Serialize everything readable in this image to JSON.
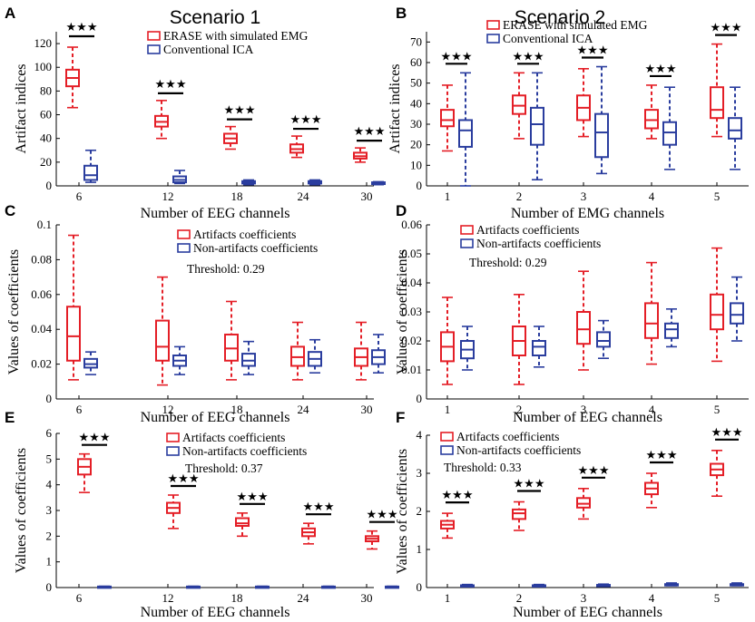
{
  "colors": {
    "artifact": "#e41e26",
    "nonartifact": "#2a3d9e"
  },
  "chart_data": [
    {
      "panel": "A",
      "type": "box",
      "title": "Scenario 1",
      "xlabel": "Number of EEG channels",
      "ylabel": "Artifact indices",
      "categories": [
        "6",
        "12",
        "18",
        "24",
        "30"
      ],
      "ylim": [
        0,
        130
      ],
      "yticks": [
        0,
        20,
        40,
        60,
        80,
        100,
        120
      ],
      "legend": [
        "ERASE with simulated EMG",
        "Conventional ICA"
      ],
      "legend_position": "top-right",
      "series": [
        {
          "name": "ERASE with simulated EMG",
          "boxes": [
            {
              "min": 66,
              "q1": 84,
              "median": 91,
              "q3": 98,
              "max": 117
            },
            {
              "min": 40,
              "q1": 50,
              "median": 54,
              "q3": 59,
              "max": 72
            },
            {
              "min": 31,
              "q1": 36,
              "median": 40,
              "q3": 44,
              "max": 50
            },
            {
              "min": 24,
              "q1": 28,
              "median": 31,
              "q3": 35,
              "max": 42
            },
            {
              "min": 20,
              "q1": 23,
              "median": 25,
              "q3": 28,
              "max": 32
            }
          ]
        },
        {
          "name": "Conventional ICA",
          "boxes": [
            {
              "min": 3,
              "q1": 5,
              "median": 9,
              "q3": 17,
              "max": 30
            },
            {
              "min": 2,
              "q1": 3,
              "median": 5,
              "q3": 8,
              "max": 13
            },
            {
              "min": 1,
              "q1": 2,
              "median": 3,
              "q3": 4,
              "max": 5
            },
            {
              "min": 1,
              "q1": 2,
              "median": 3,
              "q3": 4,
              "max": 5
            },
            {
              "min": 1,
              "q1": 1.5,
              "median": 2,
              "q3": 3,
              "max": 3.5
            }
          ]
        }
      ],
      "significance": [
        "★★★",
        "★★★",
        "★★★",
        "★★★",
        "★★★"
      ]
    },
    {
      "panel": "B",
      "type": "box",
      "title": "Scenario 2",
      "xlabel": "Number of EMG channels",
      "ylabel": "Artifact indices",
      "categories": [
        "1",
        "2",
        "3",
        "4",
        "5"
      ],
      "ylim": [
        0,
        75
      ],
      "yticks": [
        0,
        10,
        20,
        30,
        40,
        50,
        60,
        70
      ],
      "legend": [
        "ERASE with simulated EMG",
        "Conventional ICA"
      ],
      "legend_position": "top-right",
      "series": [
        {
          "name": "ERASE with simulated EMG",
          "boxes": [
            {
              "min": 17,
              "q1": 29,
              "median": 32,
              "q3": 37,
              "max": 49
            },
            {
              "min": 23,
              "q1": 35,
              "median": 39,
              "q3": 44,
              "max": 55
            },
            {
              "min": 24,
              "q1": 32,
              "median": 38,
              "q3": 44,
              "max": 57
            },
            {
              "min": 23,
              "q1": 28,
              "median": 32,
              "q3": 37,
              "max": 49
            },
            {
              "min": 24,
              "q1": 33,
              "median": 37,
              "q3": 48,
              "max": 69
            }
          ]
        },
        {
          "name": "Conventional ICA",
          "boxes": [
            {
              "min": 0,
              "q1": 19,
              "median": 27,
              "q3": 32,
              "max": 55
            },
            {
              "min": 3,
              "q1": 20,
              "median": 30,
              "q3": 38,
              "max": 55
            },
            {
              "min": 6,
              "q1": 14,
              "median": 26,
              "q3": 35,
              "max": 58
            },
            {
              "min": 8,
              "q1": 20,
              "median": 26,
              "q3": 31,
              "max": 48
            },
            {
              "min": 8,
              "q1": 23,
              "median": 27,
              "q3": 33,
              "max": 48
            }
          ]
        }
      ],
      "significance": [
        "★★★",
        "★★★",
        "★★★",
        "★★★",
        "★★★"
      ]
    },
    {
      "panel": "C",
      "type": "box",
      "xlabel": "Number of EEG channels",
      "ylabel": "Values of coefficients",
      "categories": [
        "6",
        "12",
        "18",
        "24",
        "30"
      ],
      "ylim": [
        0,
        0.1
      ],
      "yticks": [
        "0",
        "0.02",
        "0.04",
        "0.06",
        "0.08",
        "0.1"
      ],
      "legend": [
        "Artifacts coefficients",
        "Non-artifacts coefficients"
      ],
      "legend_position": "top-right",
      "threshold_text": "Threshold: 0.29",
      "series": [
        {
          "name": "Artifacts coefficients",
          "boxes": [
            {
              "min": 0.011,
              "q1": 0.022,
              "median": 0.036,
              "q3": 0.053,
              "max": 0.094
            },
            {
              "min": 0.008,
              "q1": 0.022,
              "median": 0.03,
              "q3": 0.045,
              "max": 0.07
            },
            {
              "min": 0.011,
              "q1": 0.022,
              "median": 0.029,
              "q3": 0.037,
              "max": 0.056
            },
            {
              "min": 0.011,
              "q1": 0.019,
              "median": 0.024,
              "q3": 0.03,
              "max": 0.044
            },
            {
              "min": 0.011,
              "q1": 0.019,
              "median": 0.024,
              "q3": 0.029,
              "max": 0.044
            }
          ]
        },
        {
          "name": "Non-artifacts coefficients",
          "boxes": [
            {
              "min": 0.014,
              "q1": 0.018,
              "median": 0.02,
              "q3": 0.023,
              "max": 0.027
            },
            {
              "min": 0.014,
              "q1": 0.019,
              "median": 0.022,
              "q3": 0.025,
              "max": 0.03
            },
            {
              "min": 0.014,
              "q1": 0.019,
              "median": 0.022,
              "q3": 0.026,
              "max": 0.033
            },
            {
              "min": 0.015,
              "q1": 0.019,
              "median": 0.023,
              "q3": 0.027,
              "max": 0.034
            },
            {
              "min": 0.015,
              "q1": 0.02,
              "median": 0.024,
              "q3": 0.028,
              "max": 0.037
            }
          ]
        }
      ]
    },
    {
      "panel": "D",
      "type": "box",
      "xlabel": "Number of EEG channels",
      "ylabel": "Values of coefficients",
      "categories": [
        "1",
        "2",
        "3",
        "4",
        "5"
      ],
      "ylim": [
        0,
        0.06
      ],
      "yticks": [
        "0",
        "0.01",
        "0.02",
        "0.03",
        "0.04",
        "0.05",
        "0.06"
      ],
      "legend": [
        "Artifacts coefficients",
        "Non-artifacts coefficients"
      ],
      "legend_position": "top-right",
      "threshold_text": "Threshold: 0.29",
      "series": [
        {
          "name": "Artifacts coefficients",
          "boxes": [
            {
              "min": 0.005,
              "q1": 0.013,
              "median": 0.018,
              "q3": 0.023,
              "max": 0.035
            },
            {
              "min": 0.005,
              "q1": 0.015,
              "median": 0.02,
              "q3": 0.025,
              "max": 0.036
            },
            {
              "min": 0.01,
              "q1": 0.019,
              "median": 0.024,
              "q3": 0.03,
              "max": 0.044
            },
            {
              "min": 0.012,
              "q1": 0.021,
              "median": 0.026,
              "q3": 0.033,
              "max": 0.047
            },
            {
              "min": 0.013,
              "q1": 0.024,
              "median": 0.029,
              "q3": 0.036,
              "max": 0.052
            }
          ]
        },
        {
          "name": "Non-artifacts coefficients",
          "boxes": [
            {
              "min": 0.01,
              "q1": 0.014,
              "median": 0.017,
              "q3": 0.02,
              "max": 0.025
            },
            {
              "min": 0.011,
              "q1": 0.015,
              "median": 0.018,
              "q3": 0.02,
              "max": 0.025
            },
            {
              "min": 0.014,
              "q1": 0.018,
              "median": 0.02,
              "q3": 0.023,
              "max": 0.027
            },
            {
              "min": 0.018,
              "q1": 0.021,
              "median": 0.024,
              "q3": 0.026,
              "max": 0.031
            },
            {
              "min": 0.02,
              "q1": 0.026,
              "median": 0.029,
              "q3": 0.033,
              "max": 0.042
            }
          ]
        }
      ]
    },
    {
      "panel": "E",
      "type": "box",
      "xlabel": "Number of EEG channels",
      "ylabel": "Values of coefficients",
      "categories": [
        "6",
        "12",
        "18",
        "24",
        "30"
      ],
      "ylim": [
        0,
        6
      ],
      "yticks": [
        "0",
        "1",
        "2",
        "3",
        "4",
        "5",
        "6"
      ],
      "legend": [
        "Artifacts coefficients",
        "Non-artifacts coefficients"
      ],
      "legend_position": "top-right",
      "threshold_text": "Threshold: 0.37",
      "series": [
        {
          "name": "Artifacts coefficients",
          "boxes": [
            {
              "min": 3.7,
              "q1": 4.4,
              "median": 4.7,
              "q3": 5.0,
              "max": 5.2
            },
            {
              "min": 2.3,
              "q1": 2.9,
              "median": 3.1,
              "q3": 3.3,
              "max": 3.6
            },
            {
              "min": 2.0,
              "q1": 2.4,
              "median": 2.5,
              "q3": 2.7,
              "max": 2.9
            },
            {
              "min": 1.7,
              "q1": 2.0,
              "median": 2.15,
              "q3": 2.3,
              "max": 2.5
            },
            {
              "min": 1.5,
              "q1": 1.8,
              "median": 1.9,
              "q3": 2.0,
              "max": 2.2
            }
          ]
        },
        {
          "name": "Non-artifacts coefficients",
          "boxes": [
            {
              "min": 0.01,
              "q1": 0.02,
              "median": 0.03,
              "q3": 0.04,
              "max": 0.05
            },
            {
              "min": 0.01,
              "q1": 0.02,
              "median": 0.03,
              "q3": 0.04,
              "max": 0.05
            },
            {
              "min": 0.01,
              "q1": 0.02,
              "median": 0.03,
              "q3": 0.04,
              "max": 0.05
            },
            {
              "min": 0.01,
              "q1": 0.02,
              "median": 0.03,
              "q3": 0.04,
              "max": 0.05
            },
            {
              "min": 0.01,
              "q1": 0.02,
              "median": 0.03,
              "q3": 0.04,
              "max": 0.05
            }
          ]
        }
      ],
      "significance": [
        "★★★",
        "★★★",
        "★★★",
        "★★★",
        "★★★"
      ]
    },
    {
      "panel": "F",
      "type": "box",
      "xlabel": "Number of EEG channels",
      "ylabel": "Values of coefficients",
      "categories": [
        "1",
        "2",
        "3",
        "4",
        "5"
      ],
      "ylim": [
        0,
        4
      ],
      "yticks": [
        "0",
        "1",
        "2",
        "3",
        "4"
      ],
      "legend": [
        "Artifacts coefficients",
        "Non-artifacts coefficients"
      ],
      "legend_position": "top-left",
      "threshold_text": "Threshold: 0.33",
      "series": [
        {
          "name": "Artifacts coefficients",
          "boxes": [
            {
              "min": 1.3,
              "q1": 1.55,
              "median": 1.65,
              "q3": 1.75,
              "max": 1.95
            },
            {
              "min": 1.5,
              "q1": 1.8,
              "median": 1.95,
              "q3": 2.05,
              "max": 2.25
            },
            {
              "min": 1.8,
              "q1": 2.1,
              "median": 2.2,
              "q3": 2.35,
              "max": 2.6
            },
            {
              "min": 2.1,
              "q1": 2.45,
              "median": 2.6,
              "q3": 2.75,
              "max": 3.0
            },
            {
              "min": 2.4,
              "q1": 2.95,
              "median": 3.1,
              "q3": 3.25,
              "max": 3.6
            }
          ]
        },
        {
          "name": "Non-artifacts coefficients",
          "boxes": [
            {
              "min": 0.02,
              "q1": 0.04,
              "median": 0.05,
              "q3": 0.06,
              "max": 0.08
            },
            {
              "min": 0.02,
              "q1": 0.04,
              "median": 0.05,
              "q3": 0.06,
              "max": 0.08
            },
            {
              "min": 0.03,
              "q1": 0.05,
              "median": 0.06,
              "q3": 0.07,
              "max": 0.09
            },
            {
              "min": 0.05,
              "q1": 0.07,
              "median": 0.08,
              "q3": 0.09,
              "max": 0.12
            },
            {
              "min": 0.05,
              "q1": 0.07,
              "median": 0.08,
              "q3": 0.09,
              "max": 0.12
            }
          ]
        }
      ],
      "significance": [
        "★★★",
        "★★★",
        "★★★",
        "★★★",
        "★★★"
      ]
    }
  ]
}
